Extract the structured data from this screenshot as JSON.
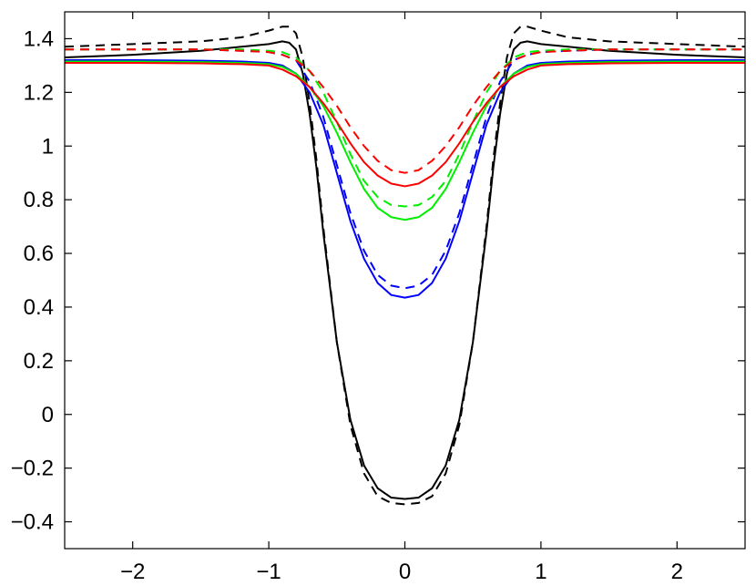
{
  "chart_data": {
    "type": "line",
    "title": "",
    "xlabel": "",
    "ylabel": "",
    "xlim": [
      -2.5,
      2.5
    ],
    "ylim": [
      -0.5,
      1.5
    ],
    "grid": false,
    "legend": "none",
    "x_ticks": [
      {
        "value": -2,
        "label": "−2"
      },
      {
        "value": -1,
        "label": "−1"
      },
      {
        "value": 0,
        "label": "0"
      },
      {
        "value": 1,
        "label": "1"
      },
      {
        "value": 2,
        "label": "2"
      }
    ],
    "y_ticks": [
      {
        "value": -0.4,
        "label": "−0.4"
      },
      {
        "value": -0.2,
        "label": "−0.2"
      },
      {
        "value": 0,
        "label": "0"
      },
      {
        "value": 0.2,
        "label": "0.2"
      },
      {
        "value": 0.4,
        "label": "0.4"
      },
      {
        "value": 0.6,
        "label": "0.6"
      },
      {
        "value": 0.8,
        "label": "0.8"
      },
      {
        "value": 1,
        "label": "1"
      },
      {
        "value": 1.2,
        "label": "1.2"
      },
      {
        "value": 1.4,
        "label": "1.4"
      }
    ],
    "series": [
      {
        "color": "#000000",
        "style": "solid",
        "x": [
          -2.5,
          -2,
          -1.5,
          -1.2,
          -1,
          -0.9,
          -0.85,
          -0.8,
          -0.75,
          -0.7,
          -0.65,
          -0.6,
          -0.5,
          -0.4,
          -0.3,
          -0.2,
          -0.1,
          0,
          0.1,
          0.2,
          0.3,
          0.4,
          0.5,
          0.6,
          0.65,
          0.7,
          0.75,
          0.8,
          0.85,
          0.9,
          1,
          1.2,
          1.5,
          2,
          2.5
        ],
        "y": [
          1.33,
          1.34,
          1.355,
          1.37,
          1.38,
          1.39,
          1.385,
          1.36,
          1.27,
          1.12,
          0.92,
          0.68,
          0.27,
          -0.02,
          -0.19,
          -0.275,
          -0.31,
          -0.315,
          -0.31,
          -0.275,
          -0.19,
          -0.02,
          0.27,
          0.68,
          0.92,
          1.12,
          1.27,
          1.36,
          1.385,
          1.39,
          1.38,
          1.37,
          1.355,
          1.34,
          1.33
        ]
      },
      {
        "color": "#000000",
        "style": "dashed",
        "x": [
          -2.5,
          -2,
          -1.5,
          -1.2,
          -1,
          -0.9,
          -0.85,
          -0.8,
          -0.75,
          -0.7,
          -0.65,
          -0.6,
          -0.5,
          -0.4,
          -0.3,
          -0.2,
          -0.1,
          0,
          0.1,
          0.2,
          0.3,
          0.4,
          0.5,
          0.6,
          0.65,
          0.7,
          0.75,
          0.8,
          0.85,
          0.9,
          1,
          1.2,
          1.5,
          2,
          2.5
        ],
        "y": [
          1.37,
          1.38,
          1.39,
          1.405,
          1.43,
          1.445,
          1.445,
          1.42,
          1.33,
          1.16,
          0.95,
          0.7,
          0.27,
          -0.04,
          -0.22,
          -0.305,
          -0.33,
          -0.335,
          -0.33,
          -0.305,
          -0.22,
          -0.04,
          0.27,
          0.7,
          0.95,
          1.16,
          1.33,
          1.42,
          1.445,
          1.445,
          1.43,
          1.405,
          1.39,
          1.38,
          1.37
        ]
      },
      {
        "color": "#0000ff",
        "style": "solid",
        "x": [
          -2.5,
          -2,
          -1.5,
          -1.2,
          -1,
          -0.9,
          -0.8,
          -0.7,
          -0.6,
          -0.5,
          -0.4,
          -0.3,
          -0.2,
          -0.1,
          0,
          0.1,
          0.2,
          0.3,
          0.4,
          0.5,
          0.6,
          0.7,
          0.8,
          0.9,
          1,
          1.2,
          1.5,
          2,
          2.5
        ],
        "y": [
          1.32,
          1.32,
          1.318,
          1.315,
          1.31,
          1.3,
          1.27,
          1.2,
          1.08,
          0.9,
          0.72,
          0.58,
          0.49,
          0.445,
          0.435,
          0.445,
          0.49,
          0.58,
          0.72,
          0.9,
          1.08,
          1.2,
          1.27,
          1.3,
          1.31,
          1.315,
          1.318,
          1.32,
          1.32
        ]
      },
      {
        "color": "#0000ff",
        "style": "dashed",
        "x": [
          -2.5,
          -2,
          -1.5,
          -1.2,
          -1,
          -0.9,
          -0.8,
          -0.7,
          -0.6,
          -0.5,
          -0.4,
          -0.3,
          -0.2,
          -0.1,
          0,
          0.1,
          0.2,
          0.3,
          0.4,
          0.5,
          0.6,
          0.7,
          0.8,
          0.9,
          1,
          1.2,
          1.5,
          2,
          2.5
        ],
        "y": [
          1.36,
          1.36,
          1.36,
          1.355,
          1.35,
          1.34,
          1.32,
          1.24,
          1.11,
          0.93,
          0.75,
          0.61,
          0.52,
          0.48,
          0.47,
          0.48,
          0.52,
          0.61,
          0.75,
          0.93,
          1.11,
          1.24,
          1.32,
          1.34,
          1.35,
          1.355,
          1.36,
          1.36,
          1.36
        ]
      },
      {
        "color": "#00ee00",
        "style": "solid",
        "x": [
          -2.5,
          -2,
          -1.5,
          -1.2,
          -1,
          -0.9,
          -0.8,
          -0.7,
          -0.6,
          -0.5,
          -0.4,
          -0.3,
          -0.2,
          -0.1,
          0,
          0.1,
          0.2,
          0.3,
          0.4,
          0.5,
          0.6,
          0.7,
          0.8,
          0.9,
          1,
          1.2,
          1.5,
          2,
          2.5
        ],
        "y": [
          1.315,
          1.315,
          1.313,
          1.31,
          1.305,
          1.295,
          1.27,
          1.22,
          1.15,
          1.05,
          0.94,
          0.84,
          0.77,
          0.735,
          0.725,
          0.735,
          0.77,
          0.84,
          0.94,
          1.05,
          1.15,
          1.22,
          1.27,
          1.295,
          1.305,
          1.31,
          1.313,
          1.315,
          1.315
        ]
      },
      {
        "color": "#00ee00",
        "style": "dashed",
        "x": [
          -2.5,
          -2,
          -1.5,
          -1.2,
          -1,
          -0.9,
          -0.8,
          -0.7,
          -0.6,
          -0.5,
          -0.4,
          -0.3,
          -0.2,
          -0.1,
          0,
          0.1,
          0.2,
          0.3,
          0.4,
          0.5,
          0.6,
          0.7,
          0.8,
          0.9,
          1,
          1.2,
          1.5,
          2,
          2.5
        ],
        "y": [
          1.36,
          1.36,
          1.36,
          1.36,
          1.355,
          1.35,
          1.33,
          1.28,
          1.2,
          1.09,
          0.97,
          0.87,
          0.81,
          0.78,
          0.775,
          0.78,
          0.81,
          0.87,
          0.97,
          1.09,
          1.2,
          1.28,
          1.33,
          1.35,
          1.355,
          1.36,
          1.36,
          1.36,
          1.36
        ]
      },
      {
        "color": "#ff0000",
        "style": "solid",
        "x": [
          -2.5,
          -2,
          -1.5,
          -1.2,
          -1,
          -0.9,
          -0.8,
          -0.7,
          -0.6,
          -0.5,
          -0.4,
          -0.3,
          -0.2,
          -0.1,
          0,
          0.1,
          0.2,
          0.3,
          0.4,
          0.5,
          0.6,
          0.7,
          0.8,
          0.9,
          1,
          1.2,
          1.5,
          2,
          2.5
        ],
        "y": [
          1.31,
          1.31,
          1.308,
          1.305,
          1.3,
          1.285,
          1.26,
          1.22,
          1.16,
          1.09,
          1.01,
          0.94,
          0.89,
          0.86,
          0.85,
          0.86,
          0.89,
          0.94,
          1.01,
          1.09,
          1.16,
          1.22,
          1.26,
          1.285,
          1.3,
          1.305,
          1.308,
          1.31,
          1.31
        ]
      },
      {
        "color": "#ff0000",
        "style": "dashed",
        "x": [
          -2.5,
          -2,
          -1.5,
          -1.2,
          -1,
          -0.9,
          -0.8,
          -0.7,
          -0.6,
          -0.5,
          -0.4,
          -0.3,
          -0.2,
          -0.1,
          0,
          0.1,
          0.2,
          0.3,
          0.4,
          0.5,
          0.6,
          0.7,
          0.8,
          0.9,
          1,
          1.2,
          1.5,
          2,
          2.5
        ],
        "y": [
          1.36,
          1.36,
          1.36,
          1.355,
          1.35,
          1.34,
          1.32,
          1.28,
          1.22,
          1.15,
          1.07,
          1.0,
          0.945,
          0.91,
          0.9,
          0.91,
          0.945,
          1.0,
          1.07,
          1.15,
          1.22,
          1.28,
          1.32,
          1.34,
          1.35,
          1.355,
          1.36,
          1.36,
          1.36
        ]
      }
    ]
  }
}
